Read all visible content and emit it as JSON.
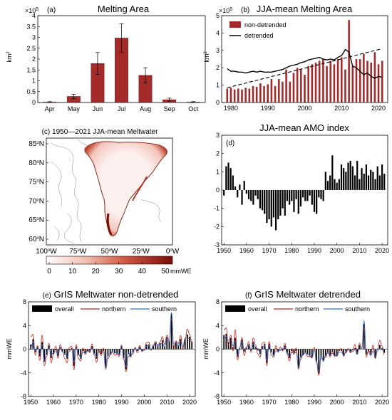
{
  "colors": {
    "bar_red": "#a52a2a",
    "dark_red": "#8b0000",
    "line_red": "#c0281e",
    "line_blue": "#2f6fd6",
    "black": "#000000"
  },
  "panels": {
    "a": {
      "label": "(a)",
      "title": "Melting Area",
      "exp": "× 10^5",
      "ylabel": "km^2",
      "chart_data": {
        "type": "bar",
        "categories": [
          "Apr",
          "May",
          "Jun",
          "Jul",
          "Aug",
          "Sep",
          "Oct"
        ],
        "values": [
          0.02,
          0.28,
          1.8,
          2.97,
          1.25,
          0.13,
          0.02
        ],
        "errors": [
          0.02,
          0.1,
          0.5,
          0.65,
          0.35,
          0.07,
          0.02
        ],
        "ylim": [
          0,
          4
        ],
        "yticks": [
          "0",
          "0.5",
          "1",
          "1.5",
          "2",
          "2.5",
          "3",
          "3.5",
          "4"
        ]
      }
    },
    "b": {
      "label": "(b)",
      "title": "JJA-mean Melting Area",
      "exp": "× 10^5",
      "ylabel": "km^2",
      "legend": [
        "non-detrended",
        "detrended"
      ],
      "chart_data": {
        "type": "bar",
        "x": [
          1979,
          1980,
          1981,
          1982,
          1983,
          1984,
          1985,
          1986,
          1987,
          1988,
          1989,
          1990,
          1991,
          1992,
          1993,
          1994,
          1995,
          1996,
          1997,
          1998,
          1999,
          2000,
          2001,
          2002,
          2003,
          2004,
          2005,
          2006,
          2007,
          2008,
          2009,
          2010,
          2011,
          2012,
          2013,
          2014,
          2015,
          2016,
          2017,
          2018,
          2019,
          2020,
          2021
        ],
        "series": [
          {
            "name": "non-detrended",
            "values": [
              0.8,
              0.85,
              0.75,
              0.8,
              0.75,
              0.85,
              0.8,
              0.95,
              0.9,
              1.1,
              0.95,
              1.05,
              1.35,
              0.95,
              1.35,
              1.2,
              1.9,
              1.2,
              1.7,
              2.0,
              1.9,
              1.6,
              2.1,
              2.2,
              2.3,
              2.4,
              2.5,
              2.1,
              2.4,
              2.2,
              2.5,
              2.6,
              1.9,
              4.75,
              2.1,
              2.5,
              2.5,
              2.8,
              2.4,
              2.3,
              2.9,
              2.2,
              2.4
            ]
          },
          {
            "name": "detrended",
            "values": [
              1.95,
              1.8,
              1.8,
              1.75,
              1.75,
              1.7,
              1.75,
              1.8,
              1.75,
              1.8,
              1.75,
              1.75,
              1.75,
              1.8,
              1.85,
              1.9,
              2.0,
              2.1,
              2.15,
              2.2,
              2.3,
              2.35,
              2.45,
              2.5,
              2.55,
              2.6,
              2.5,
              2.45,
              2.5,
              2.45,
              2.6,
              2.7,
              3.05,
              2.9,
              2.1,
              2.0,
              1.8,
              1.6,
              1.7,
              1.5,
              1.4,
              1.5,
              1.45
            ]
          }
        ],
        "trend": [
          [
            1979,
            0.85
          ],
          [
            2021,
            3.1
          ]
        ],
        "xticks": [
          "1980",
          "1990",
          "2000",
          "2010",
          "2020"
        ],
        "ylim": [
          0,
          5
        ],
        "yticks": [
          "0",
          "1",
          "2",
          "3",
          "4",
          "5"
        ]
      }
    },
    "c": {
      "label": "(c)",
      "title": "1950—2021 JJA-mean Meltwater",
      "lat_ticks": [
        "60",
        "65",
        "70",
        "75",
        "80",
        "85"
      ],
      "lon_ticks": [
        "100",
        "75",
        "50",
        "25",
        "0"
      ],
      "hemi_n": "N",
      "hemi_w": "W",
      "deg": "o",
      "colorbar": {
        "ticks": [
          "0",
          "10",
          "20",
          "30",
          "40",
          "50"
        ],
        "unit": "mmWE"
      }
    },
    "d": {
      "label": "(d)",
      "title": "JJA-mean AMO index",
      "chart_data": {
        "type": "bar",
        "x_start": 1950,
        "values": [
          -0.3,
          1.3,
          1.5,
          1.2,
          0.8,
          0.2,
          -0.4,
          0.3,
          -0.8,
          0.5,
          -0.2,
          -0.5,
          -0.6,
          -0.8,
          -0.3,
          -0.5,
          -1.0,
          -1.1,
          -1.3,
          -1.8,
          -1.6,
          -2.0,
          -1.5,
          -2.2,
          -1.6,
          -1.4,
          -1.0,
          -1.4,
          -0.6,
          -0.8,
          -0.6,
          -1.2,
          -0.5,
          -1.3,
          -0.9,
          -0.4,
          -0.6,
          -0.6,
          -0.3,
          -0.8,
          -1.2,
          -1.3,
          -0.4,
          -0.5,
          -0.6,
          1.0,
          0.5,
          0.8,
          1.9,
          0.6,
          0.4,
          0.6,
          1.4,
          1.2,
          1.0,
          1.5,
          1.6,
          1.3,
          0.8,
          1.6,
          0.6,
          1.2,
          0.9,
          1.4,
          0.8,
          1.1,
          1.0,
          0.6,
          1.3,
          0.8,
          1.4,
          0.9
        ],
        "xticks": [
          "1950",
          "1960",
          "1970",
          "1980",
          "1990",
          "2000",
          "2010",
          "2020"
        ],
        "ylim": [
          -3,
          3
        ],
        "yticks": [
          "-3",
          "-2",
          "-1",
          "0",
          "1",
          "2",
          "3"
        ]
      }
    },
    "e": {
      "label": "(e)",
      "title": "GrIS Meltwater non-detrended",
      "ylabel": "mmWE",
      "legend": [
        "overall",
        "northern",
        "southern"
      ],
      "chart_data": {
        "type": "bar",
        "x_start": 1950,
        "series": [
          {
            "name": "overall",
            "values": [
              0.8,
              1.7,
              -0.5,
              0.4,
              -1.2,
              1.2,
              -2.1,
              -0.9,
              0.6,
              -1.5,
              -0.8,
              -0.2,
              -1.1,
              0.3,
              -0.4,
              -0.9,
              -1.6,
              -0.2,
              0.2,
              -2.8,
              0.4,
              -1.0,
              -1.6,
              -0.3,
              -0.7,
              -0.3,
              -0.4,
              0.5,
              -0.8,
              -1.6,
              -0.4,
              -0.8,
              -0.3,
              -3.1,
              -1.2,
              -0.9,
              -0.4,
              -0.7,
              -0.8,
              -1.0,
              0.5,
              -1.5,
              -3.4,
              -0.8,
              -1.2,
              -0.5,
              0.2,
              -0.3,
              0.4,
              -0.3,
              -0.1,
              0.8,
              0.8,
              -0.1,
              0.6,
              1.1,
              0.6,
              1.0,
              1.5,
              0.5,
              2.0,
              1.4,
              6.0,
              0.6,
              1.2,
              0.7,
              1.7,
              0.2,
              1.7,
              2.5,
              2.1,
              1.3
            ]
          },
          {
            "name": "northern",
            "values": [
              2.1,
              2.5,
              -1.0,
              0.6,
              -1.9,
              2.4,
              -2.8,
              -1.2,
              1.0,
              -2.3,
              -0.9,
              0.5,
              -1.5,
              0.8,
              -0.3,
              -1.6,
              -2.3,
              0.3,
              0.5,
              -3.5,
              0.8,
              -1.6,
              -2.0,
              0.2,
              -0.9,
              0.0,
              -0.6,
              0.9,
              -1.0,
              -2.2,
              -0.2,
              -1.1,
              0.2,
              -3.4,
              -1.6,
              -1.0,
              -0.5,
              -1.0,
              -0.9,
              -1.2,
              0.7,
              -1.8,
              -3.8,
              -1.2,
              -0.9,
              -0.8,
              0.3,
              -0.6,
              0.6,
              -0.4,
              0.0,
              1.1,
              1.2,
              -0.2,
              0.7,
              1.3,
              0.5,
              1.2,
              2.1,
              0.8,
              2.4,
              1.5,
              5.2,
              0.2,
              1.4,
              0.9,
              2.3,
              0.1,
              1.5,
              3.4,
              2.5,
              1.0
            ]
          },
          {
            "name": "southern",
            "values": [
              0.2,
              1.2,
              -0.3,
              0.2,
              -0.9,
              0.8,
              -1.9,
              -0.5,
              0.3,
              -1.0,
              -0.6,
              -0.4,
              -0.8,
              0.1,
              -0.5,
              -0.7,
              -1.3,
              -0.4,
              -0.1,
              -2.2,
              0.2,
              -0.8,
              -1.4,
              -0.6,
              -0.5,
              -0.4,
              -0.2,
              0.2,
              -0.7,
              -1.2,
              -0.6,
              -0.6,
              -0.5,
              -3.0,
              -1.0,
              -0.8,
              -0.3,
              -0.5,
              -0.7,
              -0.9,
              0.3,
              -1.2,
              -3.0,
              -0.5,
              -1.4,
              -0.3,
              0.1,
              -0.1,
              0.2,
              -0.2,
              -0.2,
              0.5,
              0.6,
              0.0,
              0.5,
              1.0,
              0.7,
              0.8,
              1.1,
              0.3,
              1.7,
              1.3,
              6.2,
              0.9,
              1.0,
              0.5,
              1.3,
              0.4,
              1.9,
              1.8,
              1.8,
              1.6
            ]
          }
        ],
        "xticks": [
          "1950",
          "1960",
          "1970",
          "1980",
          "1990",
          "2000",
          "2010",
          "2020"
        ],
        "ylim": [
          -8,
          8
        ],
        "yticks": [
          "-8",
          "-4",
          "0",
          "4",
          "8"
        ]
      }
    },
    "f": {
      "label": "(f)",
      "title": "GrIS Meltwater detrended",
      "ylabel": "mmWE",
      "legend": [
        "overall",
        "northern",
        "southern"
      ],
      "chart_data": {
        "type": "bar",
        "x_start": 1950,
        "series": [
          {
            "name": "overall",
            "values": [
              2.4,
              2.6,
              1.2,
              1.9,
              0.3,
              1.9,
              -1.3,
              0.1,
              1.6,
              -0.4,
              0.2,
              0.8,
              -0.2,
              1.2,
              0.4,
              -0.2,
              -0.8,
              0.5,
              0.9,
              -2.3,
              0.9,
              -0.5,
              -1.1,
              0.1,
              -0.4,
              0.0,
              -0.2,
              0.6,
              -0.7,
              -1.5,
              -0.3,
              -0.7,
              -0.3,
              -3.2,
              -1.4,
              -1.0,
              -0.6,
              -0.9,
              -1.1,
              -1.4,
              0.0,
              -2.1,
              -4.1,
              -1.4,
              -1.9,
              -1.2,
              -0.6,
              -1.1,
              -0.5,
              -1.2,
              -1.1,
              -0.3,
              -0.3,
              -1.1,
              -0.5,
              0.0,
              -0.5,
              -0.2,
              0.2,
              -0.8,
              0.7,
              0.0,
              4.3,
              -0.9,
              -0.4,
              -0.9,
              0.1,
              -1.5,
              -0.1,
              0.7,
              0.2,
              -0.6
            ]
          },
          {
            "name": "northern",
            "values": [
              3.2,
              3.6,
              0.7,
              2.4,
              -0.3,
              3.3,
              -1.8,
              0.1,
              2.0,
              -1.1,
              0.3,
              1.3,
              -0.5,
              1.9,
              0.7,
              -0.8,
              -1.4,
              1.0,
              1.2,
              -2.8,
              1.3,
              -1.0,
              -1.4,
              0.6,
              -0.5,
              0.4,
              -0.3,
              1.0,
              -0.8,
              -2.0,
              0.1,
              -0.9,
              0.2,
              -3.4,
              -1.7,
              -1.0,
              -0.6,
              -1.2,
              -1.2,
              -1.5,
              0.3,
              -2.3,
              -4.4,
              -1.6,
              -1.5,
              -1.4,
              -0.4,
              -1.3,
              -0.3,
              -1.2,
              -0.9,
              0.0,
              0.1,
              -1.2,
              -0.4,
              0.1,
              -0.6,
              -0.1,
              0.8,
              -0.6,
              1.0,
              0.0,
              3.6,
              -1.3,
              -0.2,
              -0.7,
              0.7,
              -1.6,
              -0.3,
              1.5,
              0.5,
              -1.0
            ]
          },
          {
            "name": "southern",
            "values": [
              1.8,
              2.1,
              1.5,
              1.6,
              0.6,
              1.4,
              -1.1,
              0.4,
              1.3,
              0.0,
              0.3,
              0.6,
              0.0,
              0.9,
              0.2,
              0.1,
              -0.5,
              0.2,
              0.6,
              -1.9,
              0.6,
              -0.3,
              -1.0,
              -0.3,
              -0.3,
              -0.2,
              0.1,
              0.3,
              -0.6,
              -1.2,
              -0.6,
              -0.6,
              -0.6,
              -3.1,
              -1.2,
              -1.0,
              -0.6,
              -0.8,
              -1.0,
              -1.4,
              -0.2,
              -2.0,
              -3.8,
              -1.1,
              -2.1,
              -1.0,
              -0.7,
              -0.9,
              -0.7,
              -1.1,
              -1.2,
              -0.5,
              -0.5,
              -1.0,
              -0.6,
              -0.1,
              -0.4,
              -0.4,
              -0.1,
              -0.9,
              0.4,
              0.0,
              4.8,
              -0.5,
              -0.6,
              -1.1,
              -0.3,
              -1.3,
              0.1,
              0.0,
              -0.1,
              -0.3
            ]
          }
        ],
        "xticks": [
          "1950",
          "1960",
          "1970",
          "1980",
          "1990",
          "2000",
          "2010",
          "2020"
        ],
        "ylim": [
          -8,
          8
        ],
        "yticks": [
          "-8",
          "-4",
          "0",
          "4",
          "8"
        ]
      }
    }
  }
}
